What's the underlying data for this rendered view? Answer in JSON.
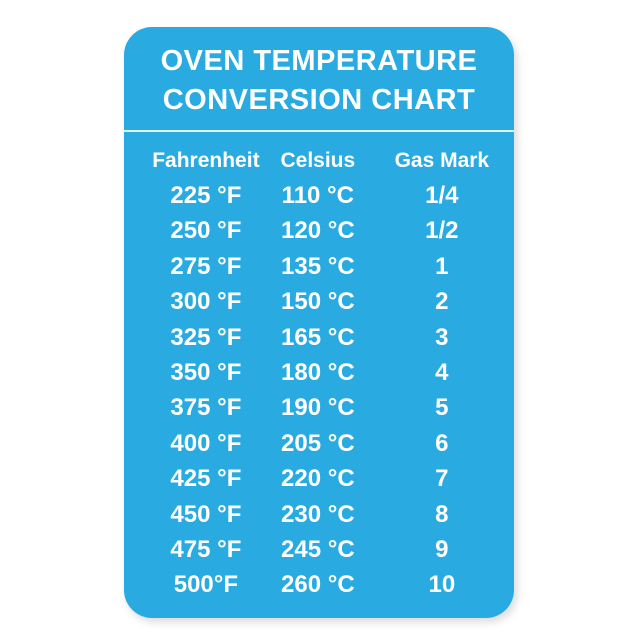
{
  "card": {
    "bg_color": "#29abe2",
    "text_color": "#ffffff",
    "title_line1": "OVEN TEMPERATURE",
    "title_line2": "CONVERSION CHART"
  },
  "chart_data": {
    "type": "table",
    "title": "OVEN TEMPERATURE CONVERSION CHART",
    "columns": [
      "Fahrenheit",
      "Celsius",
      "Gas Mark"
    ],
    "rows": [
      [
        "225 °F",
        "110 °C",
        "1/4"
      ],
      [
        "250 °F",
        "120 °C",
        "1/2"
      ],
      [
        "275 °F",
        "135 °C",
        "1"
      ],
      [
        "300 °F",
        "150 °C",
        "2"
      ],
      [
        "325 °F",
        "165 °C",
        "3"
      ],
      [
        "350 °F",
        "180 °C",
        "4"
      ],
      [
        "375 °F",
        "190 °C",
        "5"
      ],
      [
        "400 °F",
        "205 °C",
        "6"
      ],
      [
        "425 °F",
        "220 °C",
        "7"
      ],
      [
        "450 °F",
        "230 °C",
        "8"
      ],
      [
        "475 °F",
        "245 °C",
        "9"
      ],
      [
        "500°F",
        "260 °C",
        "10"
      ]
    ]
  }
}
